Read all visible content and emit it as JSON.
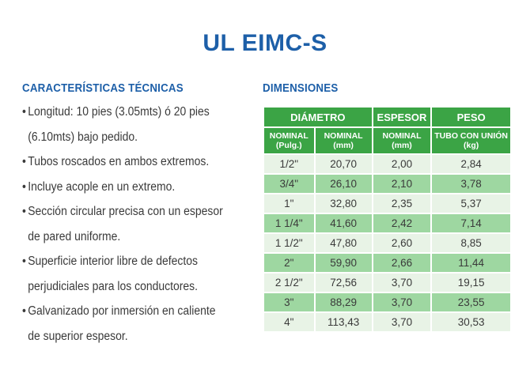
{
  "title": "UL EIMC-S",
  "features": {
    "heading": "CARACTERÍSTICAS TÉCNICAS",
    "lines": [
      {
        "text": "Longitud: 10 pies (3.05mts)  ó 20 pies",
        "bullet": true
      },
      {
        "text": "(6.10mts) bajo pedido.",
        "bullet": false
      },
      {
        "text": "Tubos roscados en ambos extremos.",
        "bullet": true
      },
      {
        "text": "Incluye acople en un extremo.",
        "bullet": true
      },
      {
        "text": "Sección circular precisa con un espesor",
        "bullet": true
      },
      {
        "text": "de pared uniforme.",
        "bullet": false
      },
      {
        "text": "Superficie interior libre de defectos",
        "bullet": true
      },
      {
        "text": "perjudiciales para los conductores.",
        "bullet": false
      },
      {
        "text": "Galvanizado por inmersión en caliente",
        "bullet": true
      },
      {
        "text": "de superior espesor.",
        "bullet": false
      }
    ]
  },
  "dimensions": {
    "heading": "DIMENSIONES",
    "group_headers": {
      "diametro": "DIÁMETRO",
      "espesor": "ESPESOR",
      "peso": "PESO"
    },
    "sub_headers": {
      "nominal_pulg_1": "NOMINAL",
      "nominal_pulg_2": "(Pulg.)",
      "nominal_mm_1": "NOMINAL",
      "nominal_mm_2": "(mm)",
      "espesor_mm_1": "NOMINAL",
      "espesor_mm_2": "(mm)",
      "peso_1": "TUBO CON UNIÓN",
      "peso_2": "(kg)"
    },
    "rows": [
      {
        "pulg": "1/2\"",
        "mm": "20,70",
        "espesor": "2,00",
        "peso": "2,84"
      },
      {
        "pulg": "3/4\"",
        "mm": "26,10",
        "espesor": "2,10",
        "peso": "3,78"
      },
      {
        "pulg": "1\"",
        "mm": "32,80",
        "espesor": "2,35",
        "peso": "5,37"
      },
      {
        "pulg": "1 1/4\"",
        "mm": "41,60",
        "espesor": "2,42",
        "peso": "7,14"
      },
      {
        "pulg": "1 1/2\"",
        "mm": "47,80",
        "espesor": "2,60",
        "peso": "8,85"
      },
      {
        "pulg": "2\"",
        "mm": "59,90",
        "espesor": "2,66",
        "peso": "11,44"
      },
      {
        "pulg": "2 1/2\"",
        "mm": "72,56",
        "espesor": "3,70",
        "peso": "19,15"
      },
      {
        "pulg": "3\"",
        "mm": "88,29",
        "espesor": "3,70",
        "peso": "23,55"
      },
      {
        "pulg": "4\"",
        "mm": "113,43",
        "espesor": "3,70",
        "peso": "30,53"
      }
    ]
  },
  "colors": {
    "title_blue": "#1d5fa8",
    "header_green": "#3ba445",
    "row_light": "#e8f3e6",
    "row_dark": "#9ed7a1"
  }
}
